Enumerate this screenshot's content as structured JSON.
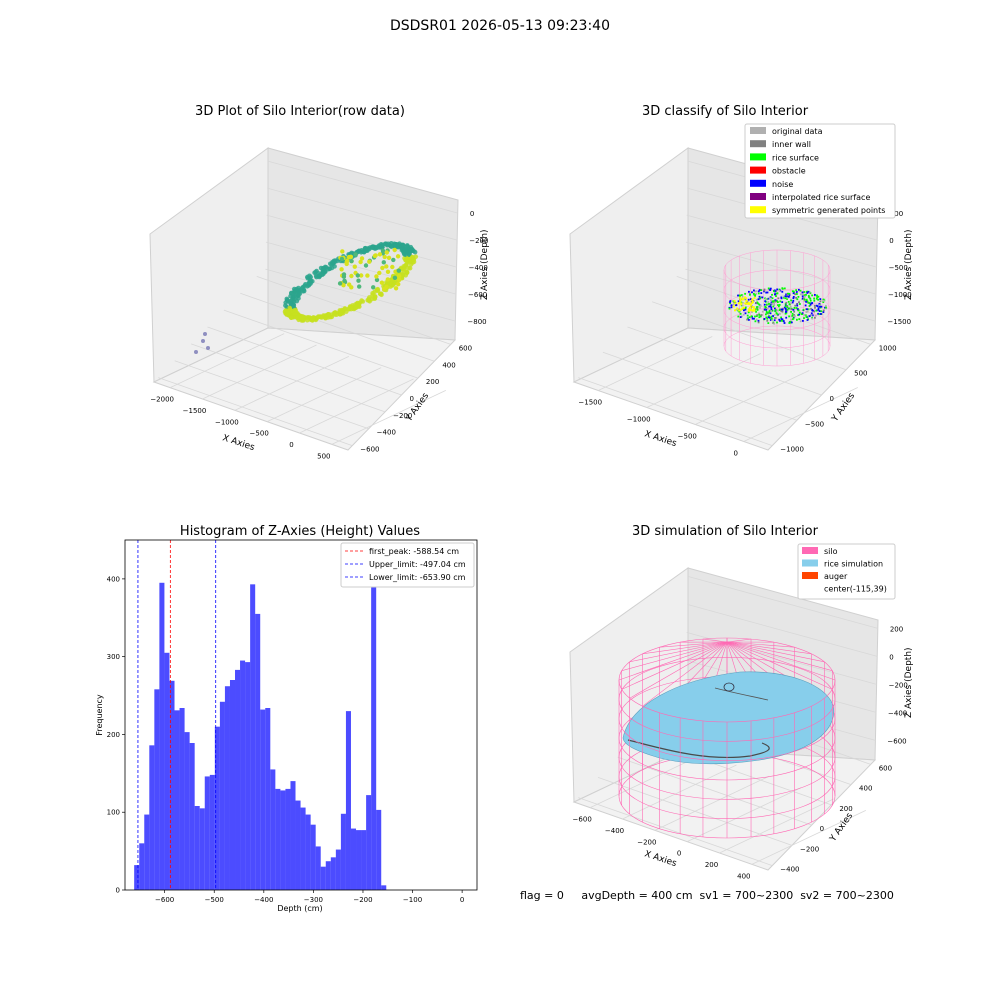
{
  "figure": {
    "suptitle": "DSDSR01 2026-05-13 09:23:40",
    "footer": "flag = 0     avgDepth = 400 cm  sv1 = 700~2300  sv2 = 700~2300",
    "colors": {
      "raw_low": "#2ca58d",
      "raw_high": "#c7e020",
      "wall": "#ff69b4",
      "rice_sim": "#87ceeb",
      "bar": "#0000ff"
    }
  },
  "chart_data": [
    {
      "type": "scatter",
      "projection": "3d",
      "title": "3D Plot of Silo Interior(row data)",
      "xlabel": "X Axies",
      "ylabel": "Y Axies",
      "zlabel": "Z Axies (Depth)",
      "xticks": [
        "−2000",
        "−1500",
        "−1000",
        "−500",
        "0",
        "500"
      ],
      "yticks": [
        "−600",
        "−400",
        "−200",
        "0",
        "200",
        "400",
        "600"
      ],
      "zticks": [
        "0",
        "−200",
        "−400",
        "−600",
        "−800"
      ],
      "colormap": "viridis",
      "grid": true
    },
    {
      "type": "scatter",
      "projection": "3d",
      "title": "3D classify of Silo Interior",
      "xlabel": "X Axies",
      "ylabel": "Y Axies",
      "zlabel": "Z Axies (Depth)",
      "xticks": [
        "−1500",
        "−1000",
        "−500",
        "0"
      ],
      "yticks": [
        "−1000",
        "−500",
        "0",
        "500",
        "1000"
      ],
      "zticks": [
        "500",
        "0",
        "−500",
        "−1000",
        "−1500"
      ],
      "legend": [
        {
          "label": "original data",
          "color": "#b0b0b0"
        },
        {
          "label": "inner wall",
          "color": "#808080"
        },
        {
          "label": "rice surface",
          "color": "#00ff00"
        },
        {
          "label": "obstacle",
          "color": "#ff0000"
        },
        {
          "label": "noise",
          "color": "#0000ff"
        },
        {
          "label": "interpolated rice surface",
          "color": "#800080"
        },
        {
          "label": "symmetric generated points",
          "color": "#ffff00"
        }
      ],
      "legend_loc": "upper right",
      "grid": true
    },
    {
      "type": "bar",
      "title": "Histogram of Z-Axies (Height) Values",
      "xlabel": "Depth (cm)",
      "ylabel": "Frequency",
      "xlim": [
        -680,
        30
      ],
      "ylim": [
        0,
        450
      ],
      "xticks": [
        -600,
        -500,
        -400,
        -300,
        -200,
        -100,
        0
      ],
      "xtick_labels": [
        "−600",
        "−500",
        "−400",
        "−300",
        "−200",
        "−100",
        "0"
      ],
      "yticks": [
        0,
        100,
        200,
        300,
        400
      ],
      "bin_start": -661.5,
      "bin_width": 10.17,
      "values": [
        32,
        60,
        97,
        186,
        258,
        395,
        305,
        269,
        231,
        234,
        203,
        189,
        108,
        105,
        146,
        148,
        210,
        242,
        262,
        270,
        283,
        295,
        293,
        393,
        355,
        232,
        234,
        155,
        130,
        128,
        130,
        140,
        115,
        106,
        97,
        84,
        56,
        30,
        37,
        42,
        52,
        98,
        230,
        79,
        77,
        77,
        122,
        430,
        103,
        6
      ],
      "vlines": [
        {
          "label": "first_peak: -588.54 cm",
          "x": -588.54,
          "color": "#ff0000"
        },
        {
          "label": "Upper_limit: -497.04 cm",
          "x": -497.04,
          "color": "#0000ff"
        },
        {
          "label": "Lower_limit: -653.90 cm",
          "x": -653.9,
          "color": "#0000ff"
        }
      ],
      "legend_loc": "upper right",
      "grid": false
    },
    {
      "type": "surface",
      "projection": "3d",
      "title": "3D simulation of Silo Interior",
      "xlabel": "X Axies",
      "ylabel": "Y Axies",
      "zlabel": "Z Axies (Depth)",
      "xticks": [
        "−600",
        "−400",
        "−200",
        "0",
        "200",
        "400"
      ],
      "yticks": [
        "−400",
        "−200",
        "0",
        "200",
        "400",
        "600"
      ],
      "zticks": [
        "200",
        "0",
        "−200",
        "−400",
        "−600"
      ],
      "legend": [
        {
          "label": "silo",
          "color": "#ff69b4"
        },
        {
          "label": "rice simulation",
          "color": "#87ceeb"
        },
        {
          "label": "auger",
          "color": "#ff4500"
        },
        {
          "label": "center(-115,39)",
          "color": "none"
        }
      ],
      "legend_loc": "upper right",
      "grid": true
    }
  ]
}
